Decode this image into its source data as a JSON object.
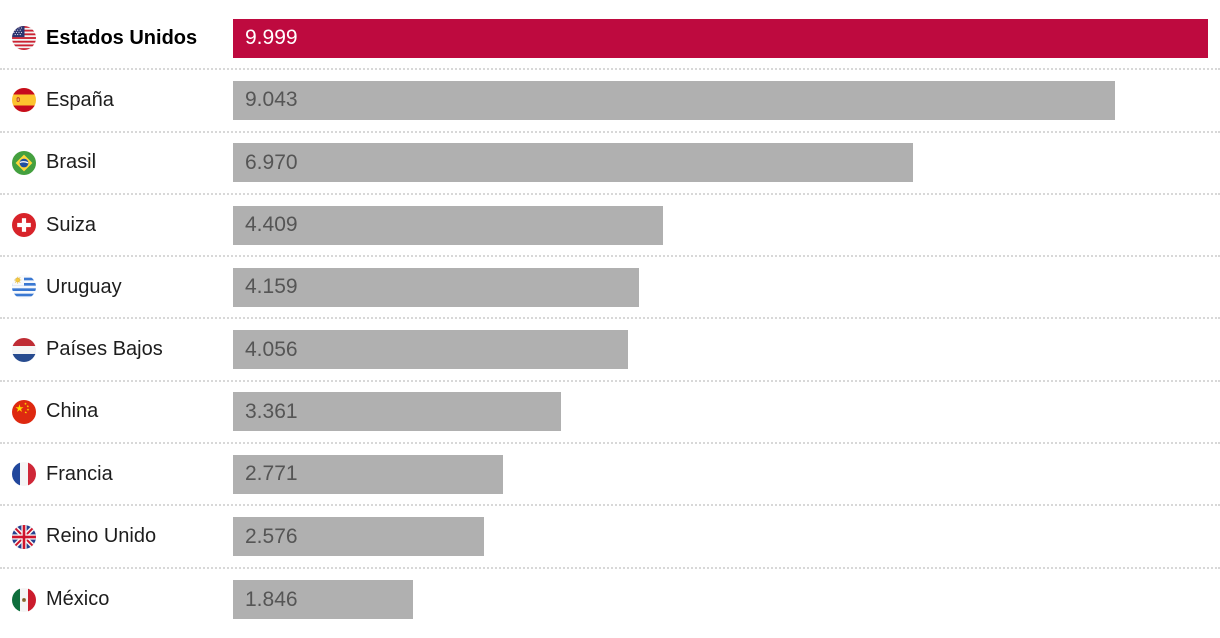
{
  "chart_data": {
    "type": "bar",
    "orientation": "horizontal",
    "title": "",
    "xlim": [
      0,
      9999
    ],
    "grid": false,
    "legend": false,
    "categories": [
      "Estados Unidos",
      "España",
      "Brasil",
      "Suiza",
      "Uruguay",
      "Países Bajos",
      "China",
      "Francia",
      "Reino Unido",
      "México"
    ],
    "values": [
      9999,
      9043,
      6970,
      4409,
      4159,
      4056,
      3361,
      2771,
      2576,
      1846
    ],
    "rows": [
      {
        "label": "Estados Unidos",
        "flag": "us",
        "value": 9999,
        "value_label": "9.999",
        "highlighted": true
      },
      {
        "label": "España",
        "flag": "es",
        "value": 9043,
        "value_label": "9.043",
        "highlighted": false
      },
      {
        "label": "Brasil",
        "flag": "br",
        "value": 6970,
        "value_label": "6.970",
        "highlighted": false
      },
      {
        "label": "Suiza",
        "flag": "ch",
        "value": 4409,
        "value_label": "4.409",
        "highlighted": false
      },
      {
        "label": "Uruguay",
        "flag": "uy",
        "value": 4159,
        "value_label": "4.159",
        "highlighted": false
      },
      {
        "label": "Países Bajos",
        "flag": "nl",
        "value": 4056,
        "value_label": "4.056",
        "highlighted": false
      },
      {
        "label": "China",
        "flag": "cn",
        "value": 3361,
        "value_label": "3.361",
        "highlighted": false
      },
      {
        "label": "Francia",
        "flag": "fr",
        "value": 2771,
        "value_label": "2.771",
        "highlighted": false
      },
      {
        "label": "Reino Unido",
        "flag": "gb",
        "value": 2576,
        "value_label": "2.576",
        "highlighted": false
      },
      {
        "label": "México",
        "flag": "mx",
        "value": 1846,
        "value_label": "1.846",
        "highlighted": false
      }
    ],
    "colors": {
      "highlight_bar": "#be0a3f",
      "bar": "#b0b0b0",
      "value_text": "#555555",
      "highlight_value_text": "#ffffff",
      "label_text": "#1d1d1d",
      "highlight_label_text": "#000000",
      "separator": "#d8d8d8",
      "background": "#ffffff"
    }
  }
}
